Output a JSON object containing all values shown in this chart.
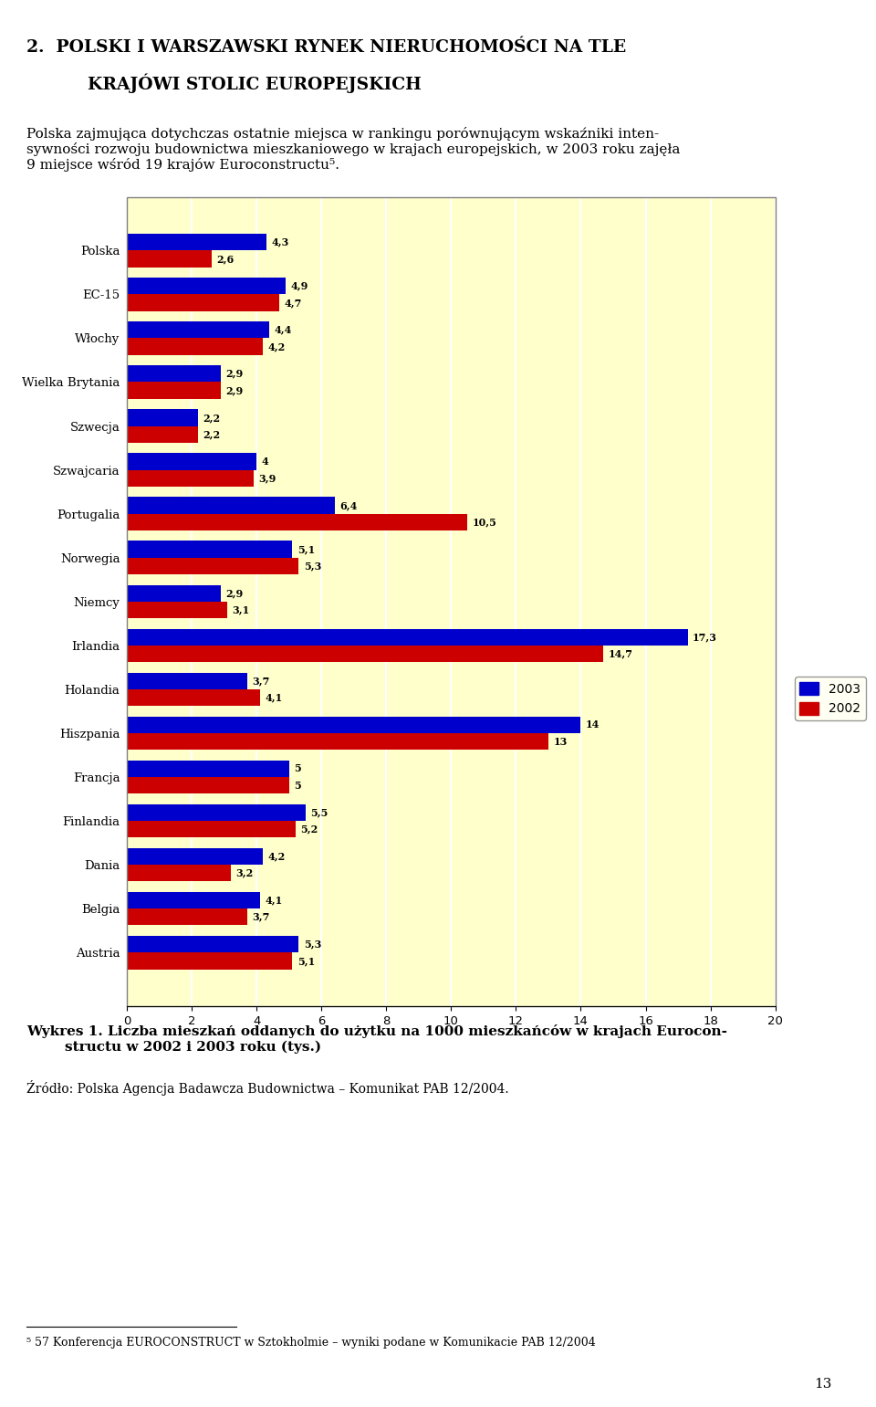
{
  "categories": [
    "Austria",
    "Belgia",
    "Dania",
    "Finlandia",
    "Francja",
    "Hiszpania",
    "Holandia",
    "Irlandia",
    "Niemcy",
    "Norwegia",
    "Portugalia",
    "Szwajcaria",
    "Szwecja",
    "Wielka Brytania",
    "Włochy",
    "EC-15",
    "Polska"
  ],
  "values_2003": [
    5.3,
    4.1,
    4.2,
    5.5,
    5.0,
    14.0,
    3.7,
    17.3,
    2.9,
    5.1,
    6.4,
    4.0,
    2.2,
    2.9,
    4.4,
    4.9,
    4.3
  ],
  "values_2002": [
    5.1,
    3.7,
    3.2,
    5.2,
    5.0,
    13.0,
    4.1,
    14.7,
    3.1,
    5.3,
    10.5,
    3.9,
    2.2,
    2.9,
    4.2,
    4.7,
    2.6
  ],
  "labels_2003": [
    "5,3",
    "4,1",
    "4,2",
    "5,5",
    "5",
    "14",
    "3,7",
    "17,3",
    "2,9",
    "5,1",
    "6,4",
    "4",
    "2,2",
    "2,9",
    "4,4",
    "4,9",
    "4,3"
  ],
  "labels_2002": [
    "5,1",
    "3,7",
    "3,2",
    "5,2",
    "5",
    "13",
    "4,1",
    "14,7",
    "3,1",
    "5,3",
    "10,5",
    "3,9",
    "2,2",
    "2,9",
    "4,2",
    "4,7",
    "2,6"
  ],
  "color_2003": "#0000cc",
  "color_2002": "#cc0000",
  "background_color": "#ffffcc",
  "xlim": [
    0,
    20
  ],
  "xticks": [
    0,
    2,
    4,
    6,
    8,
    10,
    12,
    14,
    16,
    18,
    20
  ],
  "legend_2003": "2003",
  "legend_2002": "2002",
  "bar_height": 0.38
}
